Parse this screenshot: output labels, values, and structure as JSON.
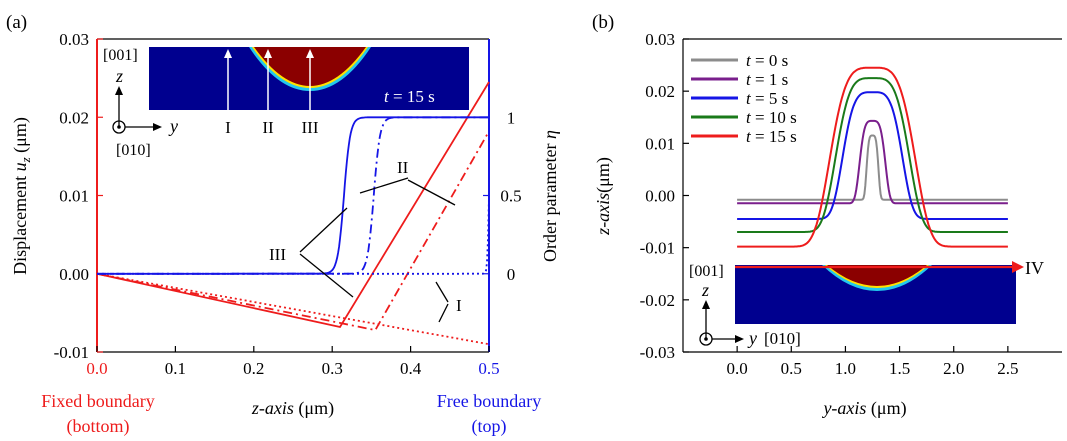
{
  "chart_data": [
    {
      "panel_label": "(a)",
      "type": "line",
      "xlabel_italic": "z-axis",
      "xlabel_unit": " (μm)",
      "ylabel_left": "Displacement u_z (μm)",
      "ylabel_right": "Order parameter η",
      "xlim": [
        0,
        0.5
      ],
      "ylim_left": [
        -0.01,
        0.03
      ],
      "ylim_right": [
        0,
        1
      ],
      "x_ticks": [
        "0.0",
        "0.1",
        "0.2",
        "0.3",
        "0.4",
        "0.5"
      ],
      "y_left_ticks": [
        "-0.01",
        "0.00",
        "0.01",
        "0.02",
        "0.03"
      ],
      "y_right_ticks": [
        "0",
        "0.5",
        "1"
      ],
      "boundary_left": [
        "Fixed boundary",
        "(bottom)"
      ],
      "boundary_right": [
        "Free boundary",
        "(top)"
      ],
      "colors": {
        "displacement": "#ee1c1c",
        "order_parameter": "#1515e6"
      },
      "series": [
        {
          "line_label": "III",
          "quantity": "u_z",
          "style": "solid",
          "x": [
            0.0,
            0.31,
            0.5
          ],
          "y": [
            0.0,
            -0.0068,
            0.0245
          ]
        },
        {
          "line_label": "II",
          "quantity": "u_z",
          "style": "dash-dot",
          "x": [
            0.0,
            0.355,
            0.5
          ],
          "y": [
            0.0,
            -0.0072,
            0.0182
          ]
        },
        {
          "line_label": "I",
          "quantity": "u_z",
          "style": "dotted",
          "x": [
            0.0,
            0.5
          ],
          "y": [
            0.0,
            -0.009
          ]
        },
        {
          "line_label": "III",
          "quantity": "eta",
          "style": "solid",
          "x0": 0.315,
          "width": 0.004
        },
        {
          "line_label": "II",
          "quantity": "eta",
          "style": "dash-dot",
          "x0": 0.353,
          "width": 0.004
        },
        {
          "line_label": "I",
          "quantity": "eta",
          "style": "dotted",
          "x0": 0.5,
          "width": 0.001
        }
      ],
      "annotations": [
        "III",
        "II",
        "I"
      ],
      "inset": {
        "caption": "t = 15 s",
        "markers": [
          "I",
          "II",
          "III"
        ],
        "axis_z": "z",
        "axis_y": "y",
        "dir_z": "[001]",
        "dir_y": "[010]"
      }
    },
    {
      "panel_label": "(b)",
      "type": "line",
      "xlabel_italic": "y-axis",
      "xlabel_unit": " (μm)",
      "ylabel_italic": "z-axis",
      "ylabel_unit": "(μm)",
      "xlim": [
        -0.5,
        3.0
      ],
      "ylim": [
        -0.03,
        0.03
      ],
      "x_ticks": [
        "0.0",
        "0.5",
        "1.0",
        "1.5",
        "2.0",
        "2.5"
      ],
      "y_ticks": [
        "-0.03",
        "-0.02",
        "-0.01",
        "0.00",
        "0.01",
        "0.02",
        "0.03"
      ],
      "legend_position": "top-left",
      "series": [
        {
          "name": "t = 0 s",
          "t_value": "0",
          "color": "#8c8c8c",
          "base": -0.0008,
          "peak": 0.0115,
          "half_width": 0.06
        },
        {
          "name": "t = 1 s",
          "t_value": "1",
          "color": "#7a1f8c",
          "base": -0.0015,
          "peak": 0.0143,
          "half_width": 0.13
        },
        {
          "name": "t = 5 s",
          "t_value": "5",
          "color": "#1515e6",
          "base": -0.0045,
          "peak": 0.0198,
          "half_width": 0.3
        },
        {
          "name": "t = 10 s",
          "t_value": "10",
          "color": "#1a7a1a",
          "base": -0.007,
          "peak": 0.0225,
          "half_width": 0.37
        },
        {
          "name": "t = 15 s",
          "t_value": "15",
          "color": "#ee1c1c",
          "base": -0.0098,
          "peak": 0.0245,
          "half_width": 0.43
        }
      ],
      "inset": {
        "marker": "IV",
        "axis_z": "z",
        "axis_y": "y",
        "dir_z": "[001]",
        "dir_y": "[010]"
      }
    }
  ]
}
